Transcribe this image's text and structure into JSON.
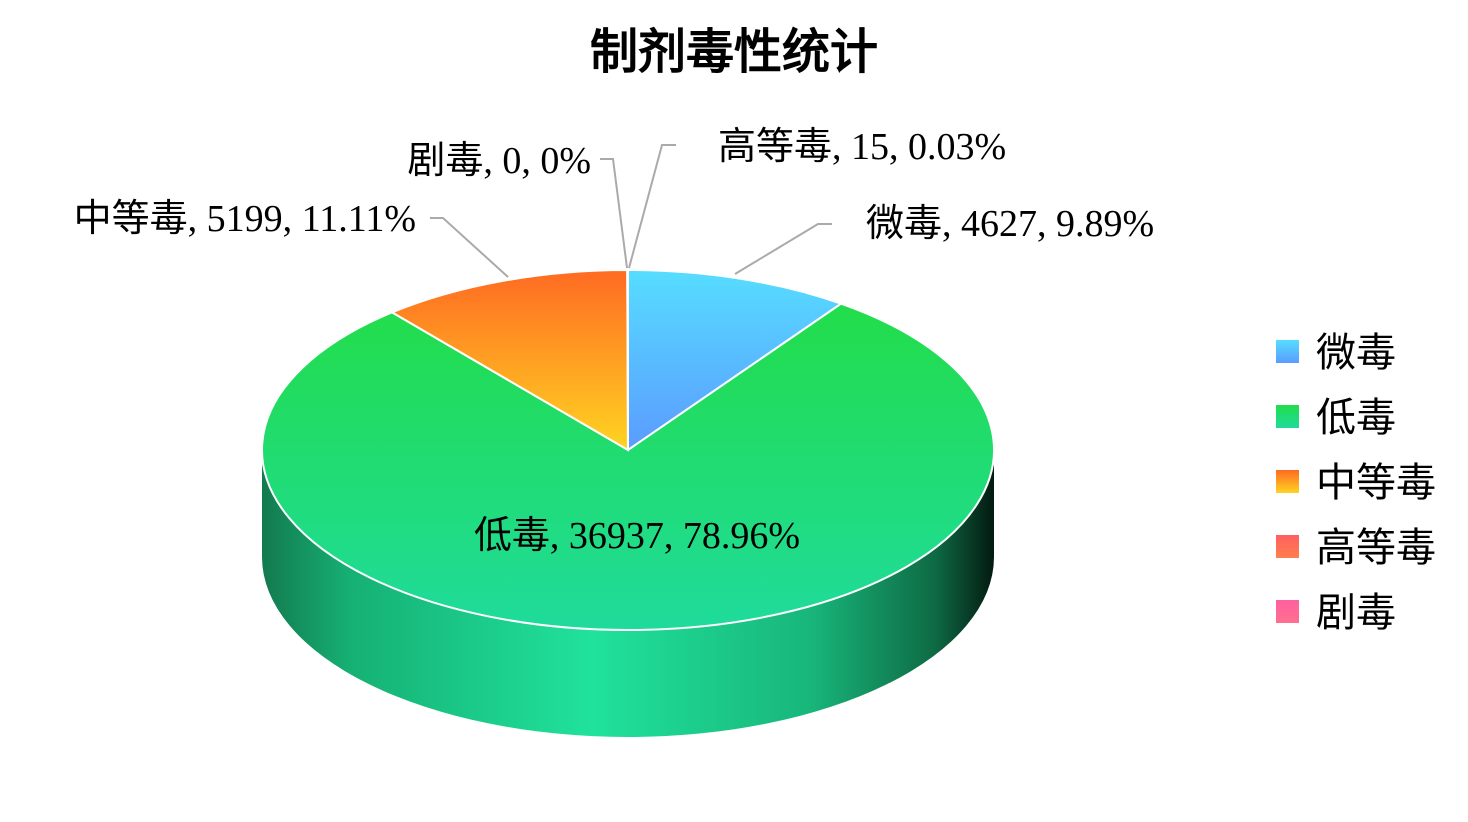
{
  "chart_data": {
    "type": "pie",
    "title": "制剂毒性统计",
    "is_3d": true,
    "legend_position": "right",
    "slices": [
      {
        "name": "微毒",
        "value": 4627,
        "percent": "9.89%",
        "label": "微毒, 4627, 9.89%",
        "color_top": "#56ddff",
        "color_bottom": "#5b9bff"
      },
      {
        "name": "低毒",
        "value": 36937,
        "percent": "78.96%",
        "label": "低毒, 36937, 78.96%",
        "color_top": "#22dd4a",
        "color_bottom": "#1fdb9c"
      },
      {
        "name": "中等毒",
        "value": 5199,
        "percent": "11.11%",
        "label": "中等毒, 5199, 11.11%",
        "color_top": "#ff6a22",
        "color_bottom": "#ffd422"
      },
      {
        "name": "高等毒",
        "value": 15,
        "percent": "0.03%",
        "label": "高等毒, 15, 0.03%",
        "color_top": "#ff5f5f",
        "color_bottom": "#ff7f4f"
      },
      {
        "name": "剧毒",
        "value": 0,
        "percent": "0%",
        "label": "剧毒, 0, 0%",
        "color_top": "#ff5fa0",
        "color_bottom": "#ff6f8f"
      }
    ]
  }
}
